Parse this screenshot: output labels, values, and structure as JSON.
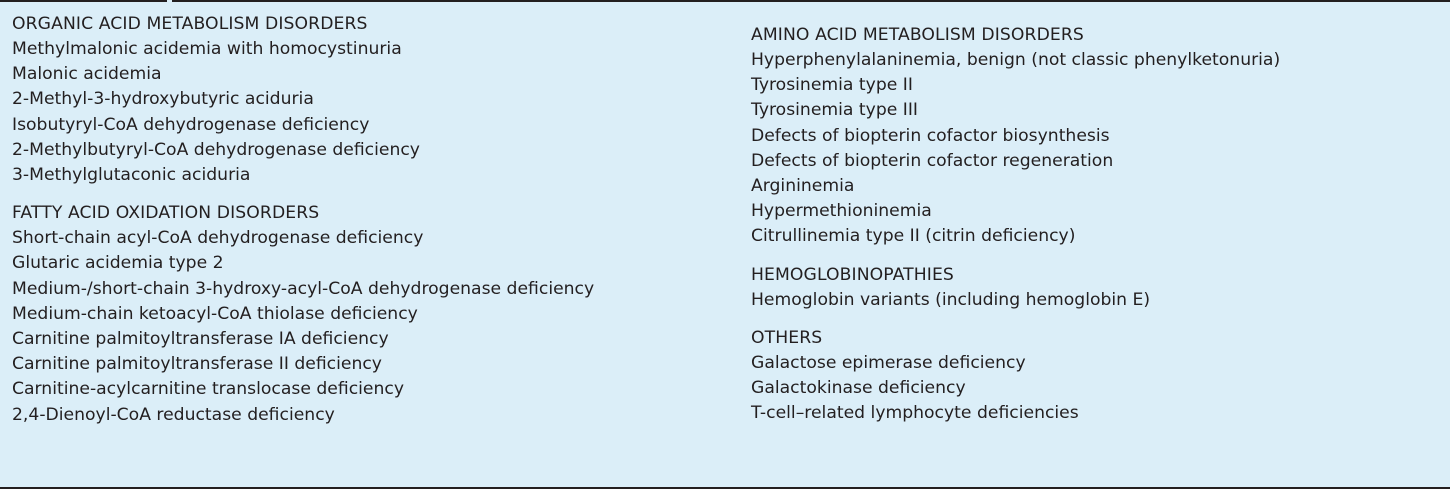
{
  "sections": [
    {
      "heading": "ORGANIC ACID METABOLISM DISORDERS",
      "items": [
        "Methylmalonic acidemia with homocystinuria",
        "Malonic acidemia",
        "2-Methyl-3-hydroxybutyric aciduria",
        "Isobutyryl-CoA dehydrogenase deficiency",
        "2-Methylbutyryl-CoA dehydrogenase deficiency",
        "3-Methylglutaconic aciduria"
      ]
    },
    {
      "heading": "FATTY ACID OXIDATION DISORDERS",
      "items": [
        "Short-chain acyl-CoA dehydrogenase deficiency",
        "Glutaric acidemia type 2",
        "Medium-/short-chain 3-hydroxy-acyl-CoA dehydrogenase deficiency",
        "Medium-chain ketoacyl-CoA thiolase deficiency",
        "Carnitine palmitoyltransferase IA deficiency",
        "Carnitine palmitoyltransferase II deficiency",
        "Carnitine-acylcarnitine translocase deficiency",
        "2,4-Dienoyl-CoA reductase deficiency"
      ]
    },
    {
      "heading": "AMINO ACID METABOLISM DISORDERS",
      "items": [
        "Hyperphenylalaninemia, benign (not classic phenylketonuria)",
        "Tyrosinemia type II",
        "Tyrosinemia type III",
        "Defects of biopterin cofactor biosynthesis",
        "Defects of biopterin cofactor regeneration",
        "Argininemia",
        "Hypermethioninemia",
        "Citrullinemia type II (citrin deficiency)"
      ]
    },
    {
      "heading": "HEMOGLOBINOPATHIES",
      "items": [
        "Hemoglobin variants (including hemoglobin E)"
      ]
    },
    {
      "heading": "OTHERS",
      "items": [
        "Galactose epimerase deficiency",
        "Galactokinase deficiency",
        "T-cell–related lymphocyte deficiencies"
      ]
    }
  ]
}
